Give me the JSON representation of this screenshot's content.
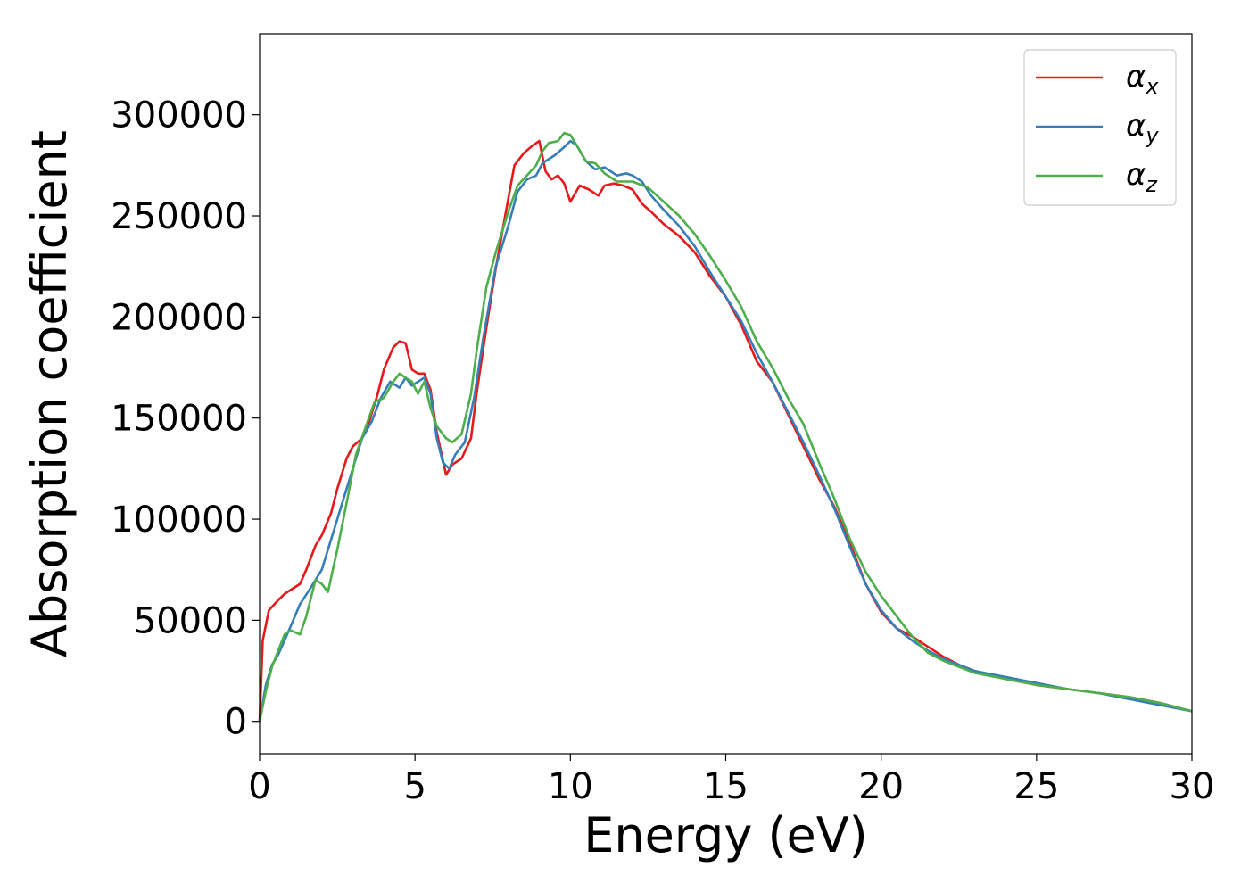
{
  "chart_data": {
    "type": "line",
    "xlabel": "Energy (eV)",
    "ylabel": "Absorption coefficient",
    "xlim": [
      0,
      30
    ],
    "ylim": [
      -16000,
      340000
    ],
    "xticks": [
      0,
      5,
      10,
      15,
      20,
      25,
      30
    ],
    "yticks": [
      0,
      50000,
      100000,
      150000,
      200000,
      250000,
      300000
    ],
    "xtick_labels": [
      "0",
      "5",
      "10",
      "15",
      "20",
      "25",
      "30"
    ],
    "ytick_labels": [
      "0",
      "50000",
      "100000",
      "150000",
      "200000",
      "250000",
      "300000"
    ],
    "grid": false,
    "legend_position": "top-right",
    "series": [
      {
        "name": "αx",
        "legend_base": "α",
        "legend_sub": "x",
        "color": "#e41a1c",
        "x": [
          0,
          0.1,
          0.3,
          0.6,
          0.8,
          1.0,
          1.3,
          1.5,
          1.8,
          2.0,
          2.3,
          2.5,
          2.8,
          3.0,
          3.3,
          3.5,
          3.8,
          4.0,
          4.3,
          4.5,
          4.7,
          4.9,
          5.1,
          5.3,
          5.5,
          5.7,
          5.9,
          6.0,
          6.2,
          6.5,
          6.8,
          7.0,
          7.3,
          7.6,
          7.9,
          8.2,
          8.5,
          8.8,
          9.0,
          9.2,
          9.4,
          9.6,
          9.8,
          10.0,
          10.3,
          10.6,
          10.9,
          11.1,
          11.4,
          11.7,
          12.0,
          12.3,
          12.6,
          13.0,
          13.5,
          14.0,
          14.5,
          15.0,
          15.5,
          16.0,
          16.5,
          17.0,
          17.5,
          18.0,
          18.5,
          19.0,
          19.5,
          20.0,
          20.5,
          21.0,
          21.5,
          22.0,
          22.5,
          23.0,
          24.0,
          25.0,
          26.0,
          27.0,
          28.0,
          29.0,
          30.0
        ],
        "y": [
          0,
          40000,
          55000,
          60000,
          63000,
          65000,
          68000,
          75000,
          87000,
          92000,
          103000,
          115000,
          130000,
          136000,
          140000,
          147000,
          162000,
          174000,
          185000,
          188000,
          187000,
          174000,
          172000,
          172000,
          164000,
          143000,
          129000,
          122000,
          127000,
          130000,
          140000,
          164000,
          195000,
          224000,
          250000,
          275000,
          281000,
          285000,
          287000,
          272000,
          268000,
          270000,
          266000,
          257000,
          265000,
          263000,
          260000,
          265000,
          266000,
          265000,
          263000,
          256000,
          252000,
          246000,
          240000,
          232000,
          220000,
          210000,
          196000,
          178000,
          168000,
          152000,
          136000,
          120000,
          106000,
          88000,
          68000,
          54000,
          46000,
          42000,
          37000,
          32000,
          28000,
          25000,
          21000,
          18000,
          16000,
          14000,
          12000,
          9000,
          5000
        ]
      },
      {
        "name": "αy",
        "legend_base": "α",
        "legend_sub": "y",
        "color": "#377eb8",
        "x": [
          0,
          0.2,
          0.4,
          0.6,
          0.8,
          1.0,
          1.3,
          1.6,
          2.0,
          2.5,
          3.0,
          3.3,
          3.6,
          3.9,
          4.2,
          4.5,
          4.7,
          4.9,
          5.1,
          5.3,
          5.5,
          5.7,
          5.9,
          6.1,
          6.3,
          6.6,
          6.9,
          7.2,
          7.6,
          8.0,
          8.3,
          8.6,
          8.9,
          9.1,
          9.3,
          9.5,
          9.8,
          10.0,
          10.2,
          10.5,
          10.8,
          11.1,
          11.5,
          11.8,
          12.0,
          12.3,
          12.6,
          13.0,
          13.5,
          14.0,
          14.5,
          15.0,
          15.5,
          16.0,
          16.5,
          17.0,
          17.5,
          18.0,
          18.5,
          19.0,
          19.5,
          20.0,
          20.5,
          21.0,
          21.5,
          22.0,
          22.5,
          23.0,
          24.0,
          25.0,
          26.0,
          27.0,
          28.0,
          29.0,
          30.0
        ],
        "y": [
          0,
          18000,
          28000,
          33000,
          40000,
          47000,
          58000,
          65000,
          75000,
          100000,
          125000,
          140000,
          148000,
          160000,
          168000,
          165000,
          170000,
          166000,
          168000,
          170000,
          162000,
          140000,
          128000,
          125000,
          132000,
          138000,
          160000,
          190000,
          225000,
          245000,
          262000,
          268000,
          270000,
          276000,
          278000,
          280000,
          284000,
          287000,
          285000,
          277000,
          273000,
          274000,
          270000,
          271000,
          270000,
          267000,
          260000,
          253000,
          245000,
          235000,
          222000,
          210000,
          198000,
          182000,
          168000,
          153000,
          138000,
          122000,
          105000,
          86000,
          68000,
          55000,
          46000,
          40000,
          35000,
          31000,
          28000,
          25000,
          22000,
          19000,
          16000,
          14000,
          11000,
          8000,
          5000
        ]
      },
      {
        "name": "αz",
        "legend_base": "α",
        "legend_sub": "z",
        "color": "#4daf4a",
        "x": [
          0,
          0.2,
          0.4,
          0.6,
          0.8,
          1.0,
          1.3,
          1.5,
          1.8,
          2.0,
          2.2,
          2.5,
          2.8,
          3.1,
          3.4,
          3.7,
          4.0,
          4.3,
          4.5,
          4.7,
          4.9,
          5.1,
          5.3,
          5.5,
          5.7,
          6.0,
          6.2,
          6.5,
          6.8,
          7.0,
          7.3,
          7.6,
          8.0,
          8.3,
          8.6,
          8.9,
          9.1,
          9.3,
          9.6,
          9.8,
          10.0,
          10.2,
          10.5,
          10.8,
          11.1,
          11.5,
          12.0,
          12.5,
          13.0,
          13.5,
          14.0,
          14.5,
          15.0,
          15.5,
          16.0,
          16.5,
          17.0,
          17.5,
          18.0,
          18.5,
          19.0,
          19.5,
          20.0,
          20.5,
          21.0,
          21.5,
          22.0,
          22.5,
          23.0,
          24.0,
          25.0,
          26.0,
          27.0,
          28.0,
          29.0,
          30.0
        ],
        "y": [
          0,
          15000,
          27000,
          35000,
          43000,
          45000,
          43000,
          52000,
          70000,
          68000,
          64000,
          85000,
          108000,
          132000,
          145000,
          158000,
          160000,
          168000,
          172000,
          170000,
          168000,
          162000,
          168000,
          155000,
          146000,
          140000,
          138000,
          142000,
          162000,
          185000,
          215000,
          232000,
          252000,
          265000,
          270000,
          275000,
          282000,
          286000,
          287000,
          291000,
          290000,
          285000,
          277000,
          276000,
          271000,
          267000,
          267000,
          264000,
          257000,
          250000,
          241000,
          230000,
          218000,
          205000,
          188000,
          175000,
          160000,
          147000,
          128000,
          110000,
          90000,
          74000,
          62000,
          52000,
          42000,
          34000,
          30000,
          27000,
          24000,
          21000,
          18000,
          16000,
          14000,
          12000,
          9000,
          5000
        ]
      }
    ]
  }
}
